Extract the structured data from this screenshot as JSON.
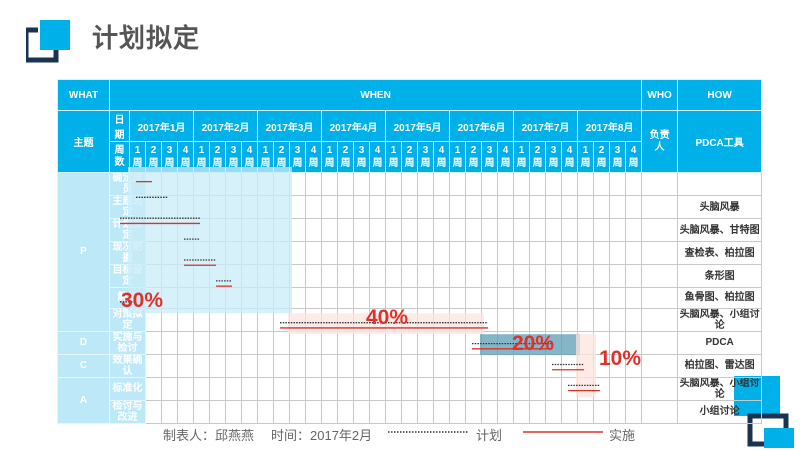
{
  "title": "计划拟定",
  "header": {
    "what": "WHAT",
    "when": "WHEN",
    "who": "WHO",
    "how": "HOW",
    "theme": "主题",
    "date_label": "日期",
    "week_count_label": "周数",
    "owner": "负责人",
    "tool": "PDCA工具"
  },
  "months": [
    "2017年1月",
    "2017年2月",
    "2017年3月",
    "2017年4月",
    "2017年5月",
    "2017年6月",
    "2017年7月",
    "2017年8月"
  ],
  "week_numbers": [
    "1",
    "2",
    "3",
    "4"
  ],
  "week_unit": "周",
  "phases": [
    {
      "label": "P",
      "rows": 7
    },
    {
      "label": "D",
      "rows": 1
    },
    {
      "label": "C",
      "rows": 1
    },
    {
      "label": "A",
      "rows": 2
    }
  ],
  "tasks": [
    {
      "name": "确定成员",
      "tool": ""
    },
    {
      "name": "主题选定",
      "tool": "头脑风暴"
    },
    {
      "name": "计划拟定",
      "tool": "头脑风暴、甘特图"
    },
    {
      "name": "现况把握",
      "tool": "查检表、柏拉图"
    },
    {
      "name": "目标设定",
      "tool": "条形图"
    },
    {
      "name": "解析",
      "tool": "鱼骨图、柏拉图"
    },
    {
      "name": "对策拟定",
      "tool": "头脑风暴、小组讨论"
    },
    {
      "name": "实施与检讨",
      "tool": "PDCA"
    },
    {
      "name": "效果确认",
      "tool": "柏拉图、雷达图"
    },
    {
      "name": "标准化",
      "tool": "头脑风暴、小组讨论"
    },
    {
      "name": "检讨与改进",
      "tool": "小组讨论"
    }
  ],
  "percentages": [
    "30%",
    "40%",
    "20%",
    "10%"
  ],
  "footer": {
    "maker": "制表人：邱燕燕",
    "time": "时间：2017年2月",
    "plan": "计划",
    "actual": "实施"
  },
  "colors": {
    "header": "#00b0e8",
    "plan_shade": "#c8ecf8",
    "do_shade": "#fde3df",
    "check_shade": "#5b9db5",
    "percent": "#e0302a",
    "plan_line": "#333333",
    "actual_line": "#d9332b"
  },
  "gantt": {
    "plan": [
      [
        1,
        1,
        2
      ],
      [
        2,
        0,
        4
      ],
      [
        3,
        4,
        4
      ],
      [
        4,
        4,
        5
      ],
      [
        5,
        6,
        6
      ],
      [
        6,
        0,
        0
      ],
      [
        7,
        10,
        22
      ],
      [
        8,
        22,
        26
      ],
      [
        9,
        27,
        28
      ],
      [
        10,
        28,
        29
      ]
    ],
    "actual": [
      [
        0,
        1,
        1
      ],
      [
        2,
        0,
        4
      ],
      [
        4,
        4,
        5
      ],
      [
        5,
        6,
        6
      ],
      [
        7,
        10,
        22
      ],
      [
        8,
        22,
        26
      ],
      [
        9,
        27,
        28
      ],
      [
        10,
        28,
        29
      ]
    ],
    "shades": [
      {
        "rows": [
          0,
          6
        ],
        "weeks": [
          0,
          10
        ],
        "color": "plan_shade"
      },
      {
        "rows": [
          7,
          7
        ],
        "weeks": [
          10,
          22
        ],
        "color": "do_shade"
      },
      {
        "rows": [
          8,
          8
        ],
        "weeks": [
          22,
          28
        ],
        "color": "check_shade"
      },
      {
        "rows": [
          8,
          10
        ],
        "weeks": [
          28,
          29
        ],
        "color": "do_shade"
      }
    ]
  }
}
